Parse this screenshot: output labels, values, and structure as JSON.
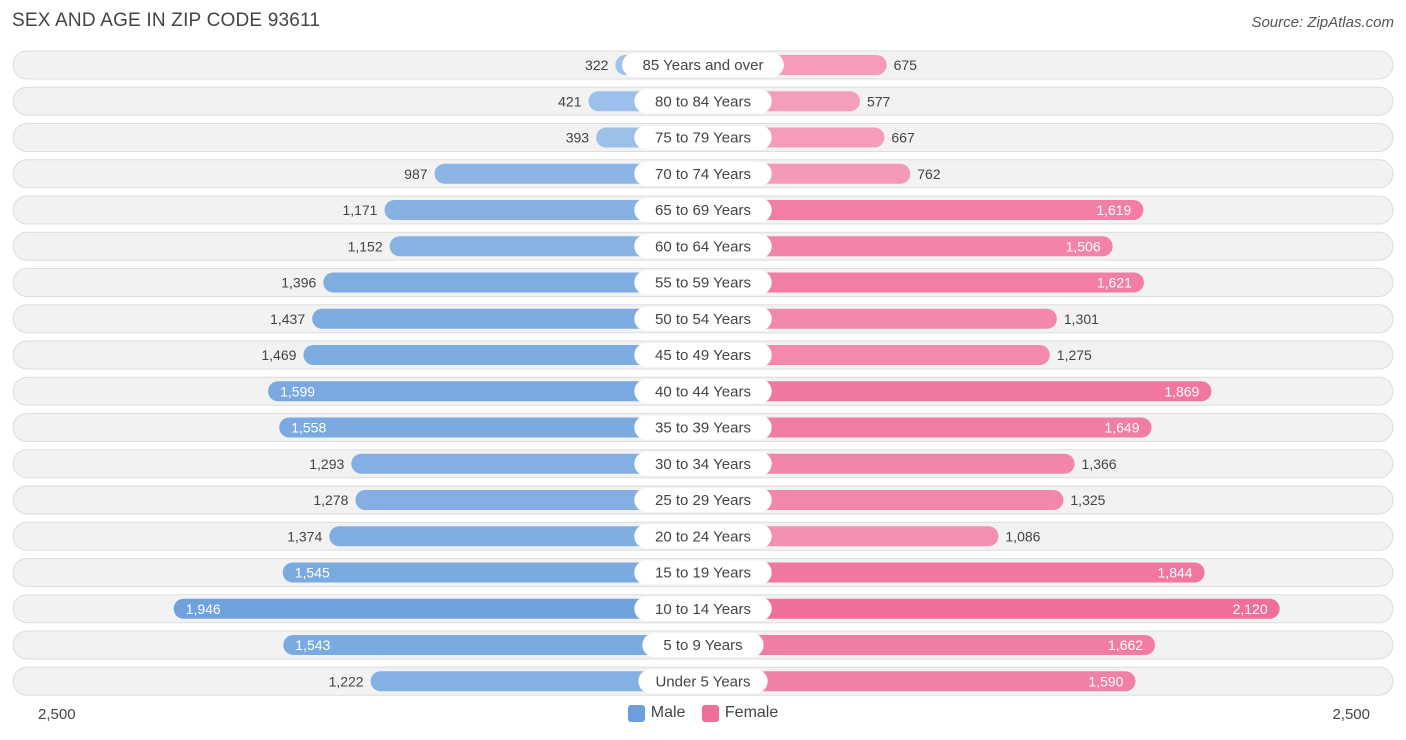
{
  "title": "SEX AND AGE IN ZIP CODE 93611",
  "source": "Source: ZipAtlas.com",
  "colors": {
    "male": "#6a9fdc",
    "female": "#f06f9a"
  },
  "chart_data": {
    "type": "bar",
    "orientation": "horizontal-diverging",
    "categories": [
      "85 Years and over",
      "80 to 84 Years",
      "75 to 79 Years",
      "70 to 74 Years",
      "65 to 69 Years",
      "60 to 64 Years",
      "55 to 59 Years",
      "50 to 54 Years",
      "45 to 49 Years",
      "40 to 44 Years",
      "35 to 39 Years",
      "30 to 34 Years",
      "25 to 29 Years",
      "20 to 24 Years",
      "15 to 19 Years",
      "10 to 14 Years",
      "5 to 9 Years",
      "Under 5 Years"
    ],
    "series": [
      {
        "name": "Male",
        "values": [
          322,
          421,
          393,
          987,
          1171,
          1152,
          1396,
          1437,
          1469,
          1599,
          1558,
          1293,
          1278,
          1374,
          1545,
          1946,
          1543,
          1222
        ],
        "labels": [
          "322",
          "421",
          "393",
          "987",
          "1,171",
          "1,152",
          "1,396",
          "1,437",
          "1,469",
          "1,599",
          "1,558",
          "1,293",
          "1,278",
          "1,374",
          "1,545",
          "1,946",
          "1,543",
          "1,222"
        ]
      },
      {
        "name": "Female",
        "values": [
          675,
          577,
          667,
          762,
          1619,
          1506,
          1621,
          1301,
          1275,
          1869,
          1649,
          1366,
          1325,
          1086,
          1844,
          2120,
          1662,
          1590
        ],
        "labels": [
          "675",
          "577",
          "667",
          "762",
          "1,619",
          "1,506",
          "1,621",
          "1,301",
          "1,275",
          "1,869",
          "1,649",
          "1,366",
          "1,325",
          "1,086",
          "1,844",
          "2,120",
          "1,662",
          "1,590"
        ]
      }
    ],
    "xlim": [
      -2500,
      2500
    ],
    "axis_tick_left": "2,500",
    "axis_tick_right": "2,500",
    "legend_position": "bottom-center"
  }
}
